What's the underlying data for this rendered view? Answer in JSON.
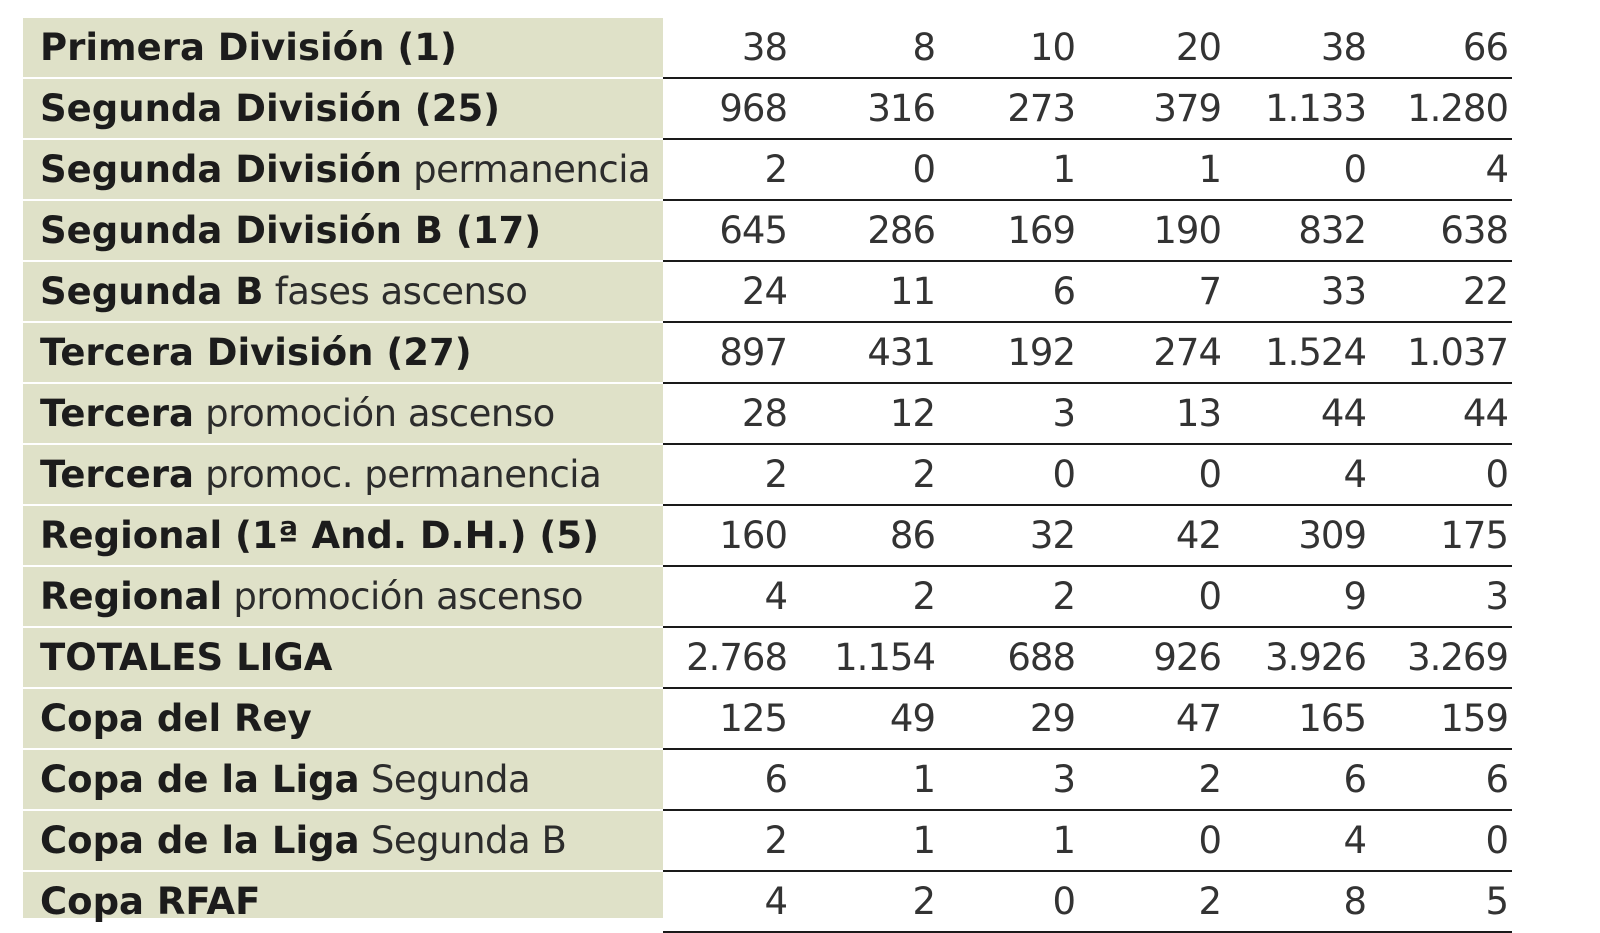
{
  "table": {
    "rows": [
      {
        "label_bold": "Primera División (1)",
        "label_normal": "",
        "values": [
          "38",
          "8",
          "10",
          "20",
          "38",
          "66"
        ]
      },
      {
        "label_bold": "Segunda División (25)",
        "label_normal": "",
        "values": [
          "968",
          "316",
          "273",
          "379",
          "1.133",
          "1.280"
        ]
      },
      {
        "label_bold": "Segunda División",
        "label_normal": " permanencia",
        "values": [
          "2",
          "0",
          "1",
          "1",
          "0",
          "4"
        ]
      },
      {
        "label_bold": "Segunda División B (17)",
        "label_normal": "",
        "values": [
          "645",
          "286",
          "169",
          "190",
          "832",
          "638"
        ]
      },
      {
        "label_bold": "Segunda B",
        "label_normal": " fases ascenso",
        "values": [
          "24",
          "11",
          "6",
          "7",
          "33",
          "22"
        ]
      },
      {
        "label_bold": "Tercera División (27)",
        "label_normal": "",
        "values": [
          "897",
          "431",
          "192",
          "274",
          "1.524",
          "1.037"
        ]
      },
      {
        "label_bold": "Tercera",
        "label_normal": " promoción ascenso",
        "values": [
          "28",
          "12",
          "3",
          "13",
          "44",
          "44"
        ]
      },
      {
        "label_bold": "Tercera",
        "label_normal": " promoc. permanencia",
        "values": [
          "2",
          "2",
          "0",
          "0",
          "4",
          "0"
        ]
      },
      {
        "label_bold": "Regional (1ª And. D.H.) (5)",
        "label_normal": "",
        "values": [
          "160",
          "86",
          "32",
          "42",
          "309",
          "175"
        ]
      },
      {
        "label_bold": "Regional",
        "label_normal": " promoción ascenso",
        "values": [
          "4",
          "2",
          "2",
          "0",
          "9",
          "3"
        ]
      },
      {
        "label_bold": "TOTALES LIGA",
        "label_normal": "",
        "values": [
          "2.768",
          "1.154",
          "688",
          "926",
          "3.926",
          "3.269"
        ]
      },
      {
        "label_bold": "Copa del Rey",
        "label_normal": "",
        "values": [
          "125",
          "49",
          "29",
          "47",
          "165",
          "159"
        ]
      },
      {
        "label_bold": "Copa de la Liga",
        "label_normal": " Segunda",
        "values": [
          "6",
          "1",
          "3",
          "2",
          "6",
          "6"
        ]
      },
      {
        "label_bold": "Copa de la Liga",
        "label_normal": " Segunda B",
        "values": [
          "2",
          "1",
          "1",
          "0",
          "4",
          "0"
        ]
      },
      {
        "label_bold": "Copa RFAF",
        "label_normal": "",
        "values": [
          "4",
          "2",
          "0",
          "2",
          "8",
          "5"
        ]
      }
    ]
  }
}
